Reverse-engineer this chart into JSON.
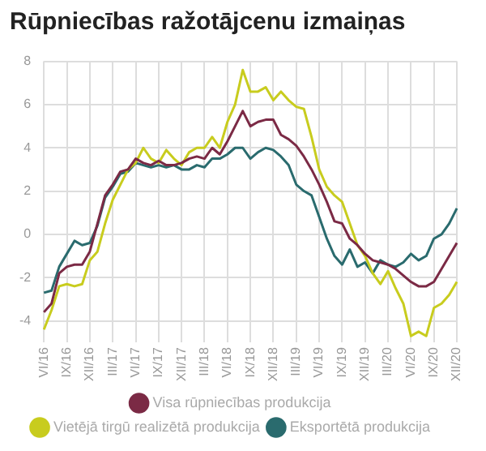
{
  "chart_data": {
    "type": "line",
    "title": "Rūpniecības ražotājcenu izmaiņas",
    "categories": [
      "VI/16",
      null,
      null,
      "IX/16",
      null,
      null,
      "XII/16",
      null,
      null,
      "III/17",
      null,
      null,
      "VI/17",
      null,
      null,
      "IX/17",
      null,
      null,
      "XII/17",
      null,
      null,
      "III/18",
      null,
      null,
      "VI/18",
      null,
      null,
      "IX/18",
      null,
      null,
      "XII/18",
      null,
      null,
      "III/19",
      null,
      null,
      "VI/19",
      null,
      null,
      "IX/19",
      null,
      null,
      "XII/19",
      null,
      null,
      "III/20",
      null,
      null,
      "VI/20",
      null,
      null,
      "IX/20",
      null,
      null,
      "XII/20"
    ],
    "series": [
      {
        "name": "Visa rūpniecības produkcija",
        "color": "#7b2a45",
        "values": [
          -3.6,
          -3.2,
          -1.8,
          -1.5,
          -1.4,
          -1.4,
          -0.8,
          0.5,
          1.8,
          2.3,
          2.9,
          3.0,
          3.5,
          3.3,
          3.2,
          3.4,
          3.2,
          3.2,
          3.3,
          3.5,
          3.6,
          3.5,
          4.0,
          3.7,
          4.3,
          5.0,
          5.7,
          5.0,
          5.2,
          5.3,
          5.3,
          4.6,
          4.4,
          4.1,
          3.6,
          3.0,
          2.3,
          1.5,
          0.6,
          0.5,
          -0.2,
          -0.5,
          -0.9,
          -1.2,
          -1.3,
          -1.4,
          -1.6,
          -1.9,
          -2.2,
          -2.4,
          -2.4,
          -2.2,
          -1.6,
          -1.0,
          -0.4
        ]
      },
      {
        "name": "Vietējā tirgū realizētā produkcija",
        "color": "#c8cc1e",
        "values": [
          -4.4,
          -3.5,
          -2.4,
          -2.3,
          -2.4,
          -2.3,
          -1.2,
          -0.8,
          0.5,
          1.6,
          2.3,
          3.0,
          3.3,
          4.0,
          3.5,
          3.3,
          3.9,
          3.5,
          3.2,
          3.8,
          4.0,
          4.0,
          4.5,
          4.0,
          5.2,
          6.0,
          7.6,
          6.6,
          6.6,
          6.8,
          6.2,
          6.6,
          6.2,
          5.9,
          5.8,
          4.5,
          3.0,
          2.2,
          1.8,
          1.5,
          0.5,
          -0.5,
          -1.0,
          -1.8,
          -2.3,
          -1.7,
          -2.5,
          -3.2,
          -4.7,
          -4.5,
          -4.7,
          -3.4,
          -3.2,
          -2.8,
          -2.2
        ]
      },
      {
        "name": "Eksportētā produkcija",
        "color": "#2a6b6e",
        "values": [
          -2.7,
          -2.6,
          -1.5,
          -0.9,
          -0.3,
          -0.5,
          -0.4,
          0.4,
          1.7,
          2.2,
          2.8,
          2.9,
          3.3,
          3.2,
          3.1,
          3.2,
          3.1,
          3.2,
          3.0,
          3.0,
          3.2,
          3.1,
          3.5,
          3.5,
          3.7,
          4.0,
          4.0,
          3.5,
          3.8,
          4.0,
          3.9,
          3.6,
          3.2,
          2.3,
          2.0,
          1.8,
          0.8,
          -0.2,
          -1.0,
          -1.4,
          -0.7,
          -1.5,
          -1.3,
          -1.8,
          -1.2,
          -1.4,
          -1.5,
          -1.3,
          -0.9,
          -1.2,
          -1.0,
          -0.2,
          0.0,
          0.5,
          1.2
        ]
      }
    ],
    "ylim": [
      -5,
      8
    ],
    "yticks": [
      -4,
      -2,
      0,
      2,
      4,
      6,
      8
    ],
    "grid": true,
    "legend": "bottom",
    "marker": "none",
    "line_style": "solid"
  }
}
